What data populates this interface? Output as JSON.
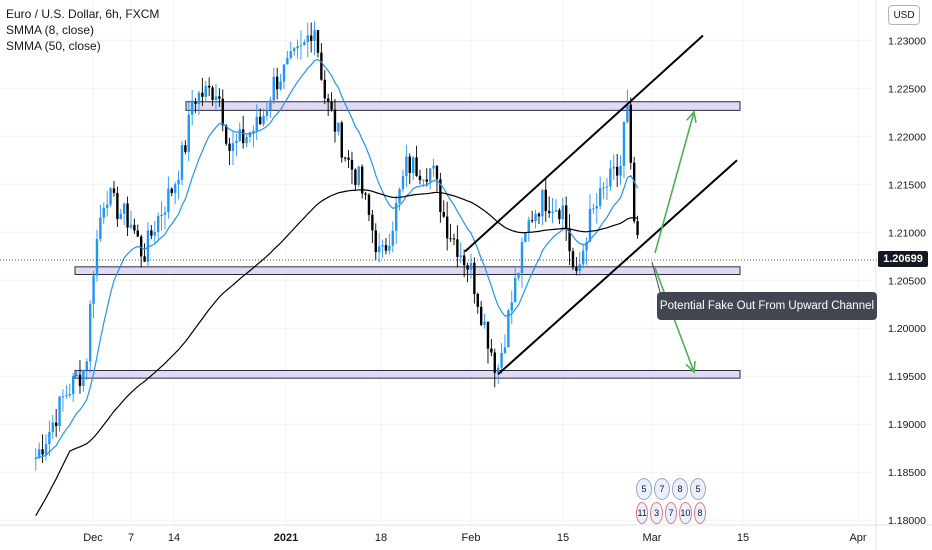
{
  "legend": {
    "symbol_line": "Euro / U.S. Dollar, 6h, FXCM",
    "smma_fast": "SMMA (8, close)",
    "smma_slow": "SMMA (50, close)"
  },
  "currency_button": "USD",
  "last_price_label": "1.20699",
  "annotation": "Potential Fake Out From Upward Channel",
  "event_badges": {
    "row1": [
      "5",
      "7",
      "8",
      "5"
    ],
    "row2": [
      "11",
      "3",
      "7",
      "10",
      "8"
    ]
  },
  "colors": {
    "bullish": "#2196f3",
    "bearish": "#000000",
    "smma_fast": "#2196f3",
    "smma_slow": "#000000",
    "zone_fill": "#e1d8f5",
    "zone_stroke": "#2a2e39",
    "arrow": "#4caf50"
  },
  "chart_data": {
    "type": "candlestick",
    "symbol": "Euro / U.S. Dollar",
    "timeframe": "6h",
    "source": "FXCM",
    "ylim": [
      1.1795,
      1.2342
    ],
    "y_ticks": [
      "1.23000",
      "1.22500",
      "1.22000",
      "1.21500",
      "1.21000",
      "1.20500",
      "1.20000",
      "1.19500",
      "1.19000",
      "1.18500",
      "1.18000"
    ],
    "x_ticks": [
      "Dec",
      "7",
      "14",
      "2021",
      "18",
      "Feb",
      "15",
      "Mar",
      "15",
      "Apr"
    ],
    "last_price": 1.20699,
    "ohlc_sampled_close": [
      [
        "Nov 23",
        1.1865
      ],
      [
        "Nov 25",
        1.1895
      ],
      [
        "Nov 27",
        1.193
      ],
      [
        "Nov 30",
        1.196
      ],
      [
        "Dec 1",
        1.206
      ],
      [
        "Dec 2",
        1.211
      ],
      [
        "Dec 3",
        1.2145
      ],
      [
        "Dec 4",
        1.213
      ],
      [
        "Dec 7",
        1.211
      ],
      [
        "Dec 9",
        1.2075
      ],
      [
        "Dec 11",
        1.211
      ],
      [
        "Dec 14",
        1.215
      ],
      [
        "Dec 16",
        1.2195
      ],
      [
        "Dec 17",
        1.224
      ],
      [
        "Dec 21",
        1.225
      ],
      [
        "Dec 23",
        1.2185
      ],
      [
        "Dec 28",
        1.2215
      ],
      [
        "Dec 30",
        1.2255
      ],
      [
        "Jan 4",
        1.229
      ],
      [
        "Jan 6",
        1.232
      ],
      [
        "Jan 8",
        1.224
      ],
      [
        "Jan 12",
        1.2175
      ],
      [
        "Jan 14",
        1.2155
      ],
      [
        "Jan 18",
        1.207
      ],
      [
        "Jan 20",
        1.2115
      ],
      [
        "Jan 22",
        1.217
      ],
      [
        "Jan 26",
        1.2165
      ],
      [
        "Jan 28",
        1.211
      ],
      [
        "Feb 1",
        1.206
      ],
      [
        "Feb 3",
        1.2005
      ],
      [
        "Feb 5",
        1.1955
      ],
      [
        "Feb 8",
        1.2055
      ],
      [
        "Feb 10",
        1.2115
      ],
      [
        "Feb 12",
        1.2135
      ],
      [
        "Feb 15",
        1.2125
      ],
      [
        "Feb 17",
        1.2045
      ],
      [
        "Feb 19",
        1.211
      ],
      [
        "Feb 22",
        1.215
      ],
      [
        "Feb 24",
        1.2165
      ],
      [
        "Feb 25",
        1.224
      ],
      [
        "Feb 26",
        1.212
      ],
      [
        "Feb 27",
        1.20699
      ]
    ],
    "horizontal_zones": [
      {
        "low": 1.2227,
        "high": 1.2236
      },
      {
        "low": 1.2056,
        "high": 1.2064
      },
      {
        "low": 1.1948,
        "high": 1.1956
      }
    ],
    "channel": {
      "upper": {
        "from": [
          "Feb 1",
          1.208
        ],
        "to": [
          "Mar 15",
          1.2305
        ]
      },
      "lower": {
        "from": [
          "Feb 5",
          1.1952
        ],
        "to": [
          "Mar 15",
          1.2175
        ]
      }
    },
    "projection_arrows": [
      {
        "from": [
          "Feb 28",
          1.2075
        ],
        "to": [
          "Mar 6",
          1.2225
        ]
      },
      {
        "from": [
          "Feb 28",
          1.206
        ],
        "to": [
          "Mar 6",
          1.1955
        ]
      }
    ]
  }
}
